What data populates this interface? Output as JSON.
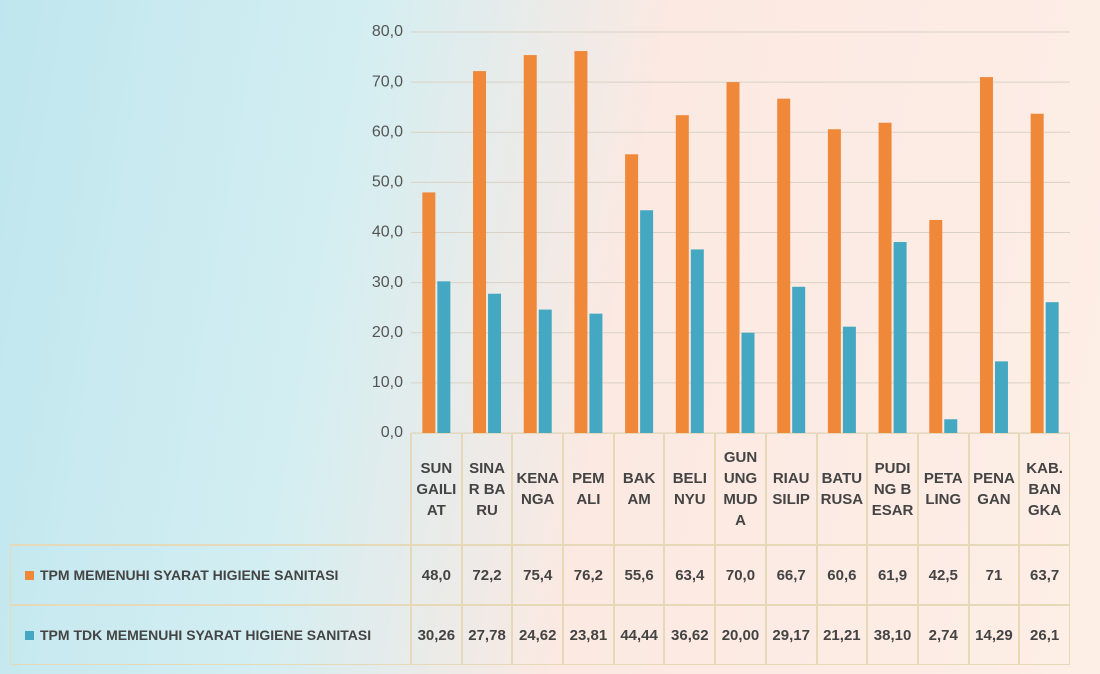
{
  "chart_data": {
    "type": "bar",
    "categories": [
      "SUNGAILIAT",
      "SINAR BARU",
      "KENANGA",
      "PEMALI",
      "BAKAM",
      "BELINYU",
      "GUNUNG MUDA",
      "RIAU SILIP",
      "BATURUSA",
      "PUDING BESAR",
      "PETALING",
      "PENAGAN",
      "KAB. BANGKA"
    ],
    "series": [
      {
        "name": "TPM MEMENUHI SYARAT HIGIENE SANITASI",
        "color": "#f0883a",
        "values": [
          48.0,
          72.2,
          75.4,
          76.2,
          55.6,
          63.4,
          70.0,
          66.7,
          60.6,
          61.9,
          42.5,
          71,
          63.7
        ],
        "value_labels": [
          "48,0",
          "72,2",
          "75,4",
          "76,2",
          "55,6",
          "63,4",
          "70,0",
          "66,7",
          "60,6",
          "61,9",
          "42,5",
          "71",
          "63,7"
        ]
      },
      {
        "name": "TPM TDK MEMENUHI SYARAT HIGIENE SANITASI",
        "color": "#45a8c2",
        "values": [
          30.26,
          27.78,
          24.62,
          23.81,
          44.44,
          36.62,
          20.0,
          29.17,
          21.21,
          38.1,
          2.74,
          14.29,
          26.1
        ],
        "value_labels": [
          "30,26",
          "27,78",
          "24,62",
          "23,81",
          "44,44",
          "36,62",
          "20,00",
          "29,17",
          "21,21",
          "38,10",
          "2,74",
          "14,29",
          "26,1"
        ]
      }
    ],
    "ylim": [
      0,
      80
    ],
    "yticks": [
      {
        "value": 0,
        "label": "0,0"
      },
      {
        "value": 10,
        "label": "10,0"
      },
      {
        "value": 20,
        "label": "20,0"
      },
      {
        "value": 30,
        "label": "30,0"
      },
      {
        "value": 40,
        "label": "40,0"
      },
      {
        "value": 50,
        "label": "50,0"
      },
      {
        "value": 60,
        "label": "60,0"
      },
      {
        "value": 70,
        "label": "70,0"
      },
      {
        "value": 80,
        "label": "80,0"
      }
    ],
    "grid": true
  }
}
